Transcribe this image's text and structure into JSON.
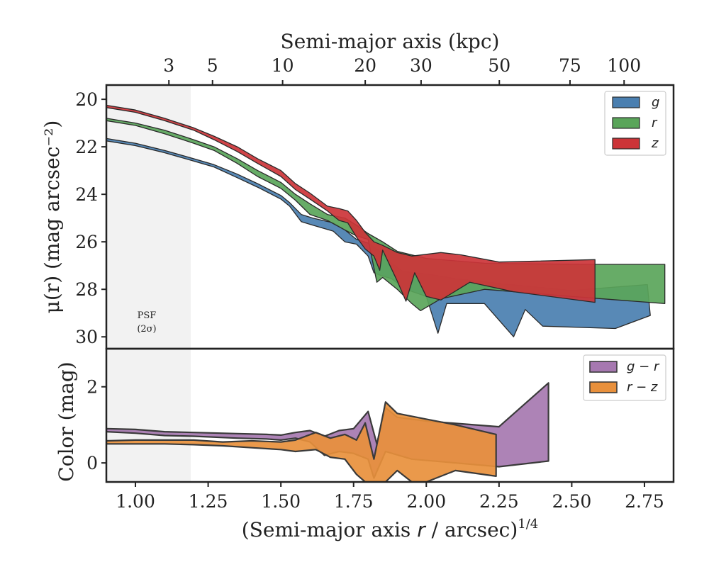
{
  "chart_data": [
    {
      "type": "area",
      "ylabel": "μ(r) (mag arcsec⁻²)",
      "top_xlabel": "Semi-major axis (kpc)",
      "top_x_ticks": [
        {
          "label": "3",
          "x_arcsec14": 1.115
        },
        {
          "label": "5",
          "x_arcsec14": 1.265
        },
        {
          "label": "10",
          "x_arcsec14": 1.506
        },
        {
          "label": "20",
          "x_arcsec14": 1.79
        },
        {
          "label": "30",
          "x_arcsec14": 1.982
        },
        {
          "label": "50",
          "x_arcsec14": 2.251
        },
        {
          "label": "75",
          "x_arcsec14": 2.494
        },
        {
          "label": "100",
          "x_arcsec14": 2.68
        }
      ],
      "xlim": [
        0.9,
        2.85
      ],
      "ylim": [
        30.5,
        19.4
      ],
      "y_inverted": true,
      "yticks": [
        20,
        22,
        24,
        26,
        28,
        30
      ],
      "legend_position": "top-right",
      "psf_band": {
        "x_start": 0.9,
        "x_end": 1.19,
        "label_line1": "PSF",
        "label_line2": "(2σ)"
      },
      "series": [
        {
          "name": "g",
          "color": "#4a7fb0",
          "upper": [
            [
              0.9,
              21.65
            ],
            [
              1.0,
              21.85
            ],
            [
              1.1,
              22.15
            ],
            [
              1.2,
              22.5
            ],
            [
              1.27,
              22.75
            ],
            [
              1.35,
              23.15
            ],
            [
              1.42,
              23.55
            ],
            [
              1.5,
              24.05
            ],
            [
              1.53,
              24.35
            ],
            [
              1.57,
              24.85
            ],
            [
              1.61,
              25.0
            ],
            [
              1.68,
              25.2
            ],
            [
              1.72,
              25.5
            ],
            [
              1.76,
              25.9
            ],
            [
              1.8,
              26.05
            ],
            [
              1.84,
              26.4
            ],
            [
              1.88,
              26.9
            ],
            [
              1.92,
              27.25
            ],
            [
              2.0,
              27.35
            ],
            [
              2.1,
              27.55
            ],
            [
              2.25,
              27.75
            ],
            [
              2.5,
              28.05
            ],
            [
              2.76,
              27.8
            ]
          ],
          "lower": [
            [
              0.9,
              21.75
            ],
            [
              1.0,
              21.95
            ],
            [
              1.1,
              22.25
            ],
            [
              1.2,
              22.6
            ],
            [
              1.27,
              22.85
            ],
            [
              1.35,
              23.3
            ],
            [
              1.42,
              23.7
            ],
            [
              1.5,
              24.2
            ],
            [
              1.53,
              24.5
            ],
            [
              1.57,
              25.15
            ],
            [
              1.61,
              25.3
            ],
            [
              1.68,
              25.55
            ],
            [
              1.72,
              26.0
            ],
            [
              1.76,
              26.1
            ],
            [
              1.8,
              26.6
            ],
            [
              1.82,
              27.3
            ],
            [
              1.84,
              27.4
            ],
            [
              1.88,
              27.55
            ],
            [
              1.93,
              28.0
            ],
            [
              2.0,
              28.3
            ],
            [
              2.04,
              29.85
            ],
            [
              2.07,
              28.6
            ],
            [
              2.2,
              28.6
            ],
            [
              2.3,
              30.0
            ],
            [
              2.34,
              28.85
            ],
            [
              2.4,
              29.55
            ],
            [
              2.65,
              29.65
            ],
            [
              2.77,
              29.1
            ]
          ]
        },
        {
          "name": "r",
          "color": "#5aa55a",
          "upper": [
            [
              0.9,
              20.8
            ],
            [
              1.0,
              21.0
            ],
            [
              1.1,
              21.3
            ],
            [
              1.2,
              21.7
            ],
            [
              1.27,
              22.0
            ],
            [
              1.35,
              22.5
            ],
            [
              1.42,
              23.0
            ],
            [
              1.5,
              23.5
            ],
            [
              1.55,
              24.0
            ],
            [
              1.6,
              24.4
            ],
            [
              1.66,
              24.85
            ],
            [
              1.72,
              25.0
            ],
            [
              1.76,
              25.3
            ],
            [
              1.8,
              25.65
            ],
            [
              1.85,
              26.0
            ],
            [
              1.9,
              26.4
            ],
            [
              2.0,
              26.7
            ],
            [
              2.2,
              26.9
            ],
            [
              2.55,
              26.95
            ],
            [
              2.82,
              26.95
            ]
          ],
          "lower": [
            [
              0.9,
              20.9
            ],
            [
              1.0,
              21.1
            ],
            [
              1.1,
              21.45
            ],
            [
              1.2,
              21.85
            ],
            [
              1.27,
              22.15
            ],
            [
              1.35,
              22.7
            ],
            [
              1.42,
              23.25
            ],
            [
              1.5,
              23.75
            ],
            [
              1.55,
              24.25
            ],
            [
              1.6,
              24.85
            ],
            [
              1.66,
              25.1
            ],
            [
              1.72,
              25.5
            ],
            [
              1.76,
              25.75
            ],
            [
              1.8,
              25.9
            ],
            [
              1.83,
              27.7
            ],
            [
              1.85,
              27.5
            ],
            [
              1.9,
              28.0
            ],
            [
              1.95,
              28.6
            ],
            [
              1.98,
              28.9
            ],
            [
              2.05,
              28.4
            ],
            [
              2.2,
              28.0
            ],
            [
              2.5,
              28.3
            ],
            [
              2.82,
              28.6
            ]
          ]
        },
        {
          "name": "z",
          "color": "#cc3438",
          "upper": [
            [
              0.9,
              20.25
            ],
            [
              1.0,
              20.45
            ],
            [
              1.1,
              20.8
            ],
            [
              1.2,
              21.2
            ],
            [
              1.27,
              21.55
            ],
            [
              1.35,
              22.0
            ],
            [
              1.42,
              22.5
            ],
            [
              1.5,
              23.0
            ],
            [
              1.55,
              23.55
            ],
            [
              1.6,
              23.95
            ],
            [
              1.66,
              24.5
            ],
            [
              1.7,
              24.6
            ],
            [
              1.73,
              24.7
            ],
            [
              1.76,
              25.1
            ],
            [
              1.79,
              25.6
            ],
            [
              1.82,
              26.0
            ],
            [
              1.85,
              26.15
            ],
            [
              1.9,
              26.45
            ],
            [
              1.95,
              26.6
            ],
            [
              2.05,
              26.45
            ],
            [
              2.12,
              26.55
            ],
            [
              2.25,
              26.85
            ],
            [
              2.58,
              26.75
            ]
          ],
          "lower": [
            [
              0.9,
              20.35
            ],
            [
              1.0,
              20.55
            ],
            [
              1.1,
              20.9
            ],
            [
              1.2,
              21.3
            ],
            [
              1.27,
              21.7
            ],
            [
              1.35,
              22.2
            ],
            [
              1.42,
              22.7
            ],
            [
              1.5,
              23.25
            ],
            [
              1.55,
              23.8
            ],
            [
              1.6,
              24.2
            ],
            [
              1.66,
              24.7
            ],
            [
              1.7,
              25.1
            ],
            [
              1.73,
              25.2
            ],
            [
              1.76,
              25.8
            ],
            [
              1.79,
              26.3
            ],
            [
              1.82,
              26.6
            ],
            [
              1.84,
              27.2
            ],
            [
              1.85,
              26.35
            ],
            [
              1.9,
              27.65
            ],
            [
              1.93,
              28.5
            ],
            [
              1.96,
              27.3
            ],
            [
              2.0,
              28.3
            ],
            [
              2.05,
              28.45
            ],
            [
              2.15,
              27.7
            ],
            [
              2.3,
              28.1
            ],
            [
              2.58,
              28.55
            ]
          ]
        }
      ]
    },
    {
      "type": "area",
      "ylabel": "Color (mag)",
      "xlabel": "(Semi-major axis r / arcsec)^1/4",
      "xlim": [
        0.9,
        2.85
      ],
      "ylim": [
        -0.5,
        3.0
      ],
      "yticks": [
        0,
        2
      ],
      "xticks": [
        1.0,
        1.25,
        1.5,
        1.75,
        2.0,
        2.25,
        2.5,
        2.75
      ],
      "xtick_labels": [
        "1.00",
        "1.25",
        "1.50",
        "1.75",
        "2.00",
        "2.25",
        "2.50",
        "2.75"
      ],
      "legend_position": "top-right",
      "series": [
        {
          "name": "g − r",
          "color": "#a678b0",
          "upper": [
            [
              0.9,
              0.9
            ],
            [
              1.0,
              0.88
            ],
            [
              1.1,
              0.82
            ],
            [
              1.2,
              0.8
            ],
            [
              1.35,
              0.77
            ],
            [
              1.45,
              0.75
            ],
            [
              1.5,
              0.73
            ],
            [
              1.55,
              0.8
            ],
            [
              1.6,
              0.85
            ],
            [
              1.65,
              0.7
            ],
            [
              1.7,
              0.85
            ],
            [
              1.75,
              0.9
            ],
            [
              1.8,
              1.35
            ],
            [
              1.83,
              0.5
            ],
            [
              1.86,
              1.45
            ],
            [
              1.9,
              1.2
            ],
            [
              2.0,
              1.1
            ],
            [
              2.25,
              0.95
            ],
            [
              2.42,
              2.1
            ]
          ],
          "lower": [
            [
              0.9,
              0.82
            ],
            [
              1.0,
              0.78
            ],
            [
              1.1,
              0.72
            ],
            [
              1.2,
              0.7
            ],
            [
              1.35,
              0.65
            ],
            [
              1.45,
              0.63
            ],
            [
              1.5,
              0.6
            ],
            [
              1.55,
              0.65
            ],
            [
              1.6,
              0.55
            ],
            [
              1.65,
              0.2
            ],
            [
              1.7,
              0.3
            ],
            [
              1.75,
              0.25
            ],
            [
              1.8,
              0.1
            ],
            [
              1.82,
              -0.4
            ],
            [
              1.86,
              0.3
            ],
            [
              1.95,
              0.1
            ],
            [
              2.1,
              0.0
            ],
            [
              2.25,
              -0.1
            ],
            [
              2.42,
              0.05
            ]
          ]
        },
        {
          "name": "r − z",
          "color": "#e8903c",
          "upper": [
            [
              0.9,
              0.58
            ],
            [
              1.0,
              0.6
            ],
            [
              1.1,
              0.6
            ],
            [
              1.2,
              0.6
            ],
            [
              1.3,
              0.55
            ],
            [
              1.4,
              0.58
            ],
            [
              1.5,
              0.55
            ],
            [
              1.55,
              0.6
            ],
            [
              1.62,
              0.8
            ],
            [
              1.67,
              0.65
            ],
            [
              1.72,
              0.75
            ],
            [
              1.76,
              0.6
            ],
            [
              1.79,
              1.05
            ],
            [
              1.82,
              0.1
            ],
            [
              1.86,
              1.6
            ],
            [
              1.9,
              1.3
            ],
            [
              2.0,
              1.15
            ],
            [
              2.1,
              1.0
            ],
            [
              2.24,
              0.75
            ]
          ],
          "lower": [
            [
              0.9,
              0.5
            ],
            [
              1.0,
              0.5
            ],
            [
              1.1,
              0.5
            ],
            [
              1.2,
              0.48
            ],
            [
              1.3,
              0.45
            ],
            [
              1.4,
              0.4
            ],
            [
              1.5,
              0.35
            ],
            [
              1.55,
              0.3
            ],
            [
              1.62,
              0.35
            ],
            [
              1.67,
              0.15
            ],
            [
              1.72,
              0.1
            ],
            [
              1.76,
              -0.3
            ],
            [
              1.79,
              -0.5
            ],
            [
              1.82,
              -0.5
            ],
            [
              1.86,
              -0.5
            ],
            [
              1.9,
              -0.2
            ],
            [
              1.95,
              -0.5
            ],
            [
              2.0,
              -0.5
            ],
            [
              2.1,
              -0.2
            ],
            [
              2.24,
              -0.35
            ]
          ]
        }
      ]
    }
  ]
}
